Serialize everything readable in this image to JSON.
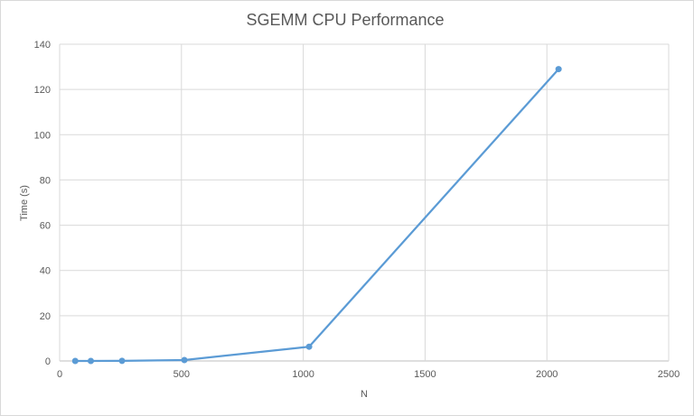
{
  "chart_data": {
    "type": "scatter",
    "title": "SGEMM CPU Performance",
    "xlabel": "N",
    "ylabel": "Time (s)",
    "xlim": [
      0,
      2500
    ],
    "ylim": [
      0,
      140
    ],
    "x_ticks": [
      0,
      500,
      1000,
      1500,
      2000,
      2500
    ],
    "y_ticks": [
      0,
      20,
      40,
      60,
      80,
      100,
      120,
      140
    ],
    "grid": true,
    "legend": "none",
    "series": [
      {
        "x": [
          64,
          128,
          256,
          512,
          1024,
          2048
        ],
        "y": [
          0.0,
          0.0,
          0.05,
          0.4,
          6.3,
          129.0
        ],
        "color": "#5b9bd5"
      }
    ]
  }
}
